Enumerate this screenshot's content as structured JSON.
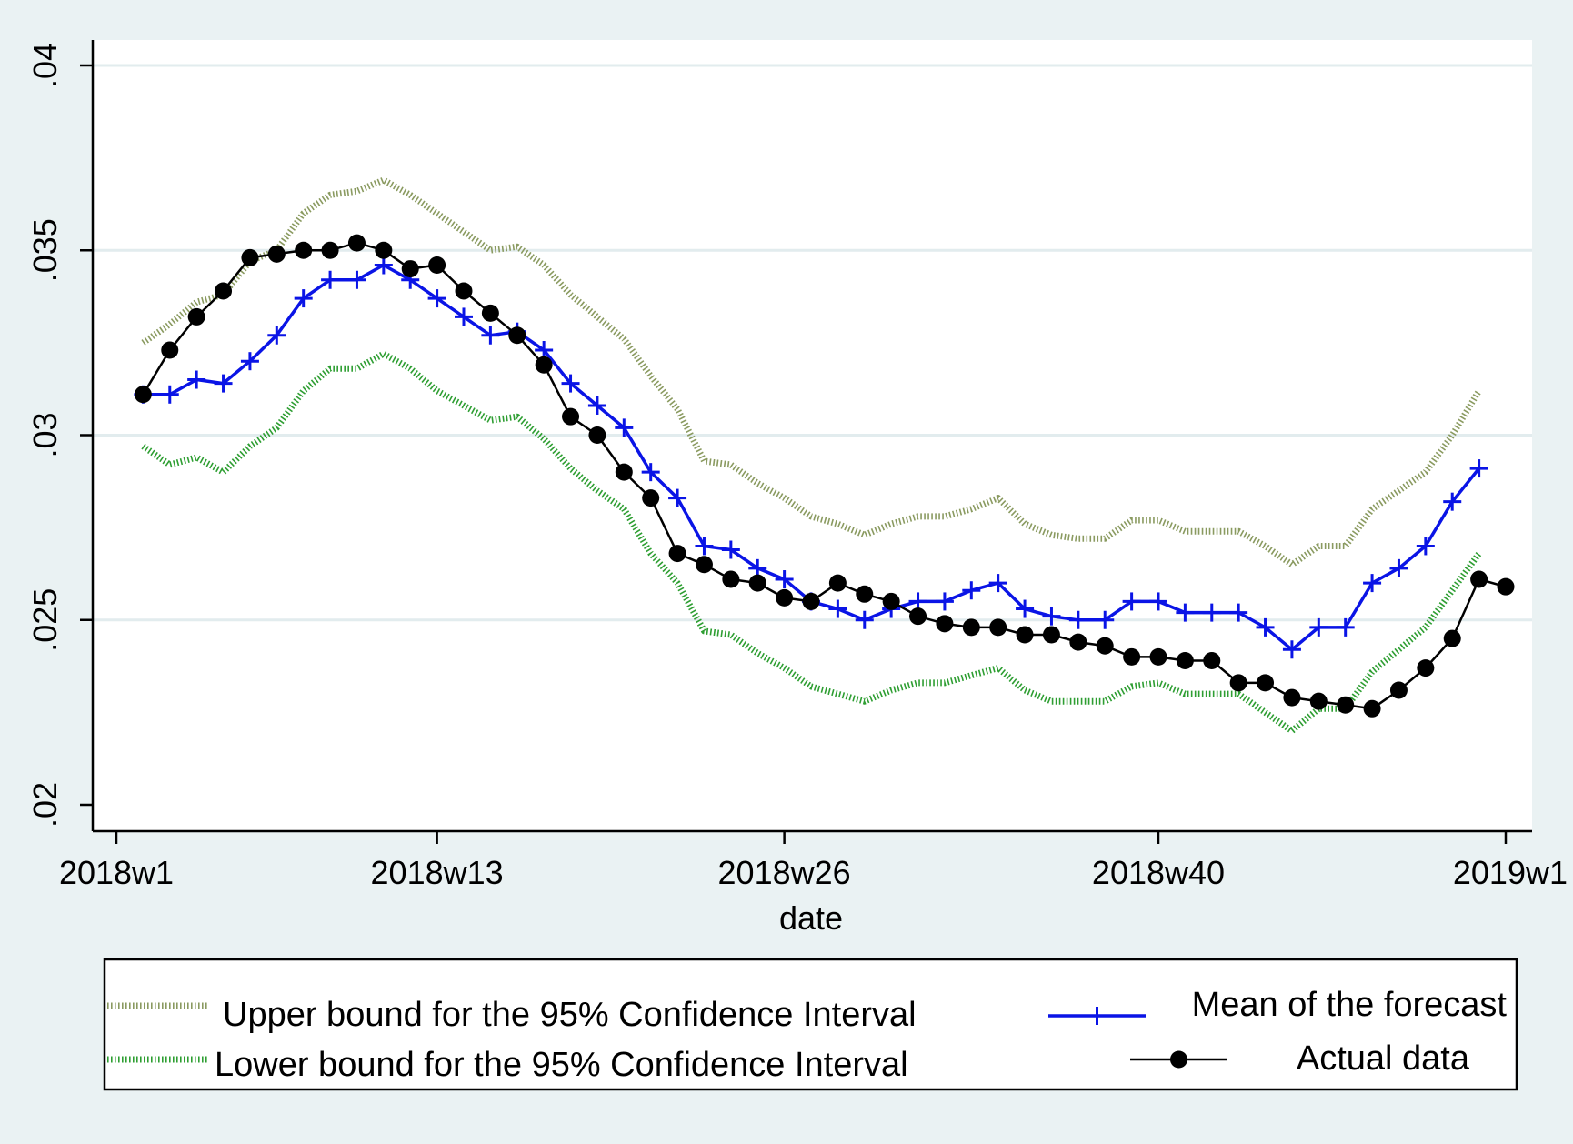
{
  "chart_data": {
    "type": "line",
    "xlabel": "date",
    "ylabel": "",
    "xlim": [
      0,
      52.5
    ],
    "ylim": [
      0.0193,
      0.0407
    ],
    "x_ticks": [
      {
        "value": 0,
        "label": "2018w1"
      },
      {
        "value": 12,
        "label": "2018w13"
      },
      {
        "value": 25,
        "label": "2018w26"
      },
      {
        "value": 39,
        "label": "2018w40"
      },
      {
        "value": 52,
        "label": "2019w1"
      }
    ],
    "y_ticks": [
      {
        "value": 0.02,
        "label": ".02"
      },
      {
        "value": 0.025,
        "label": ".025"
      },
      {
        "value": 0.03,
        "label": ".03"
      },
      {
        "value": 0.035,
        "label": ".035"
      },
      {
        "value": 0.04,
        "label": ".04"
      }
    ],
    "grid": true,
    "legend_position": "bottom",
    "colors": {
      "plot_background": "#ffffff",
      "outer_background": "#eaf2f3",
      "grid": "#e2ecee",
      "upper": "#8a9a60",
      "lower": "#2e9e32",
      "mean": "#0a14e6",
      "actual": "#000000"
    },
    "series": [
      {
        "name": "Upper bound for the 95% Confidence Interval",
        "style": "dotted",
        "x": [
          1,
          2,
          3,
          4,
          5,
          6,
          7,
          8,
          9,
          10,
          11,
          12,
          13,
          14,
          15,
          16,
          17,
          18,
          19,
          20,
          21,
          22,
          23,
          24,
          25,
          26,
          27,
          28,
          29,
          30,
          31,
          32,
          33,
          34,
          35,
          36,
          37,
          38,
          39,
          40,
          41,
          42,
          43,
          44,
          45,
          46,
          47,
          48,
          49,
          50,
          51,
          52
        ],
        "values": [
          0.0325,
          0.033,
          0.0336,
          0.0338,
          0.0347,
          0.035,
          0.036,
          0.0365,
          0.0366,
          0.0369,
          0.0365,
          0.036,
          0.0355,
          0.035,
          0.0351,
          0.0346,
          0.0338,
          0.0332,
          0.0326,
          0.0316,
          0.0307,
          0.0293,
          0.0292,
          0.0287,
          0.0283,
          0.0278,
          0.0276,
          0.0273,
          0.0276,
          0.0278,
          0.0278,
          0.028,
          0.0283,
          0.0276,
          0.0273,
          0.0272,
          0.0272,
          0.0277,
          0.0277,
          0.0274,
          0.0274,
          0.0274,
          0.027,
          0.0265,
          0.027,
          0.027,
          0.028,
          0.0285,
          0.029,
          0.03,
          0.0312,
          null
        ]
      },
      {
        "name": "Lower bound for the 95% Confidence Interval",
        "style": "dotted",
        "x": [
          1,
          2,
          3,
          4,
          5,
          6,
          7,
          8,
          9,
          10,
          11,
          12,
          13,
          14,
          15,
          16,
          17,
          18,
          19,
          20,
          21,
          22,
          23,
          24,
          25,
          26,
          27,
          28,
          29,
          30,
          31,
          32,
          33,
          34,
          35,
          36,
          37,
          38,
          39,
          40,
          41,
          42,
          43,
          44,
          45,
          46,
          47,
          48,
          49,
          50,
          51,
          52
        ],
        "values": [
          0.0297,
          0.0292,
          0.0294,
          0.029,
          0.0297,
          0.0302,
          0.0312,
          0.0318,
          0.0318,
          0.0322,
          0.0318,
          0.0312,
          0.0308,
          0.0304,
          0.0305,
          0.0299,
          0.0291,
          0.0285,
          0.028,
          0.0268,
          0.026,
          0.0247,
          0.0246,
          0.0241,
          0.0237,
          0.0232,
          0.023,
          0.0228,
          0.0231,
          0.0233,
          0.0233,
          0.0235,
          0.0237,
          0.0231,
          0.0228,
          0.0228,
          0.0228,
          0.0232,
          0.0233,
          0.023,
          0.023,
          0.023,
          0.0225,
          0.022,
          0.0226,
          0.0226,
          0.0236,
          0.0242,
          0.0248,
          0.0258,
          0.0268,
          null
        ]
      },
      {
        "name": "Mean of the forecast",
        "style": "line-plus",
        "x": [
          1,
          2,
          3,
          4,
          5,
          6,
          7,
          8,
          9,
          10,
          11,
          12,
          13,
          14,
          15,
          16,
          17,
          18,
          19,
          20,
          21,
          22,
          23,
          24,
          25,
          26,
          27,
          28,
          29,
          30,
          31,
          32,
          33,
          34,
          35,
          36,
          37,
          38,
          39,
          40,
          41,
          42,
          43,
          44,
          45,
          46,
          47,
          48,
          49,
          50,
          51,
          52
        ],
        "values": [
          0.0311,
          0.0311,
          0.0315,
          0.0314,
          0.032,
          0.0327,
          0.0337,
          0.0342,
          0.0342,
          0.0346,
          0.0342,
          0.0337,
          0.0332,
          0.0327,
          0.0328,
          0.0323,
          0.0314,
          0.0308,
          0.0302,
          0.029,
          0.0283,
          0.027,
          0.0269,
          0.0264,
          0.0261,
          0.0255,
          0.0253,
          0.025,
          0.0253,
          0.0255,
          0.0255,
          0.0258,
          0.026,
          0.0253,
          0.0251,
          0.025,
          0.025,
          0.0255,
          0.0255,
          0.0252,
          0.0252,
          0.0252,
          0.0248,
          0.0242,
          0.0248,
          0.0248,
          0.026,
          0.0264,
          0.027,
          0.0282,
          0.0291,
          null
        ]
      },
      {
        "name": "Actual data",
        "style": "line-dot",
        "x": [
          1,
          2,
          3,
          4,
          5,
          6,
          7,
          8,
          9,
          10,
          11,
          12,
          13,
          14,
          15,
          16,
          17,
          18,
          19,
          20,
          21,
          22,
          23,
          24,
          25,
          26,
          27,
          28,
          29,
          30,
          31,
          32,
          33,
          34,
          35,
          36,
          37,
          38,
          39,
          40,
          41,
          42,
          43,
          44,
          45,
          46,
          47,
          48,
          49,
          50,
          51,
          52
        ],
        "values": [
          0.0311,
          0.0323,
          0.0332,
          0.0339,
          0.0348,
          0.0349,
          0.035,
          0.035,
          0.0352,
          0.035,
          0.0345,
          0.0346,
          0.0339,
          0.0333,
          0.0327,
          0.0319,
          0.0305,
          0.03,
          0.029,
          0.0283,
          0.0268,
          0.0265,
          0.0261,
          0.026,
          0.0256,
          0.0255,
          0.026,
          0.0257,
          0.0255,
          0.0251,
          0.0249,
          0.0248,
          0.0248,
          0.0246,
          0.0246,
          0.0244,
          0.0243,
          0.024,
          0.024,
          0.0239,
          0.0239,
          0.0233,
          0.0233,
          0.0229,
          0.0228,
          0.0227,
          0.0226,
          0.0231,
          0.0237,
          0.0245,
          0.0261,
          0.0259
        ]
      }
    ]
  }
}
